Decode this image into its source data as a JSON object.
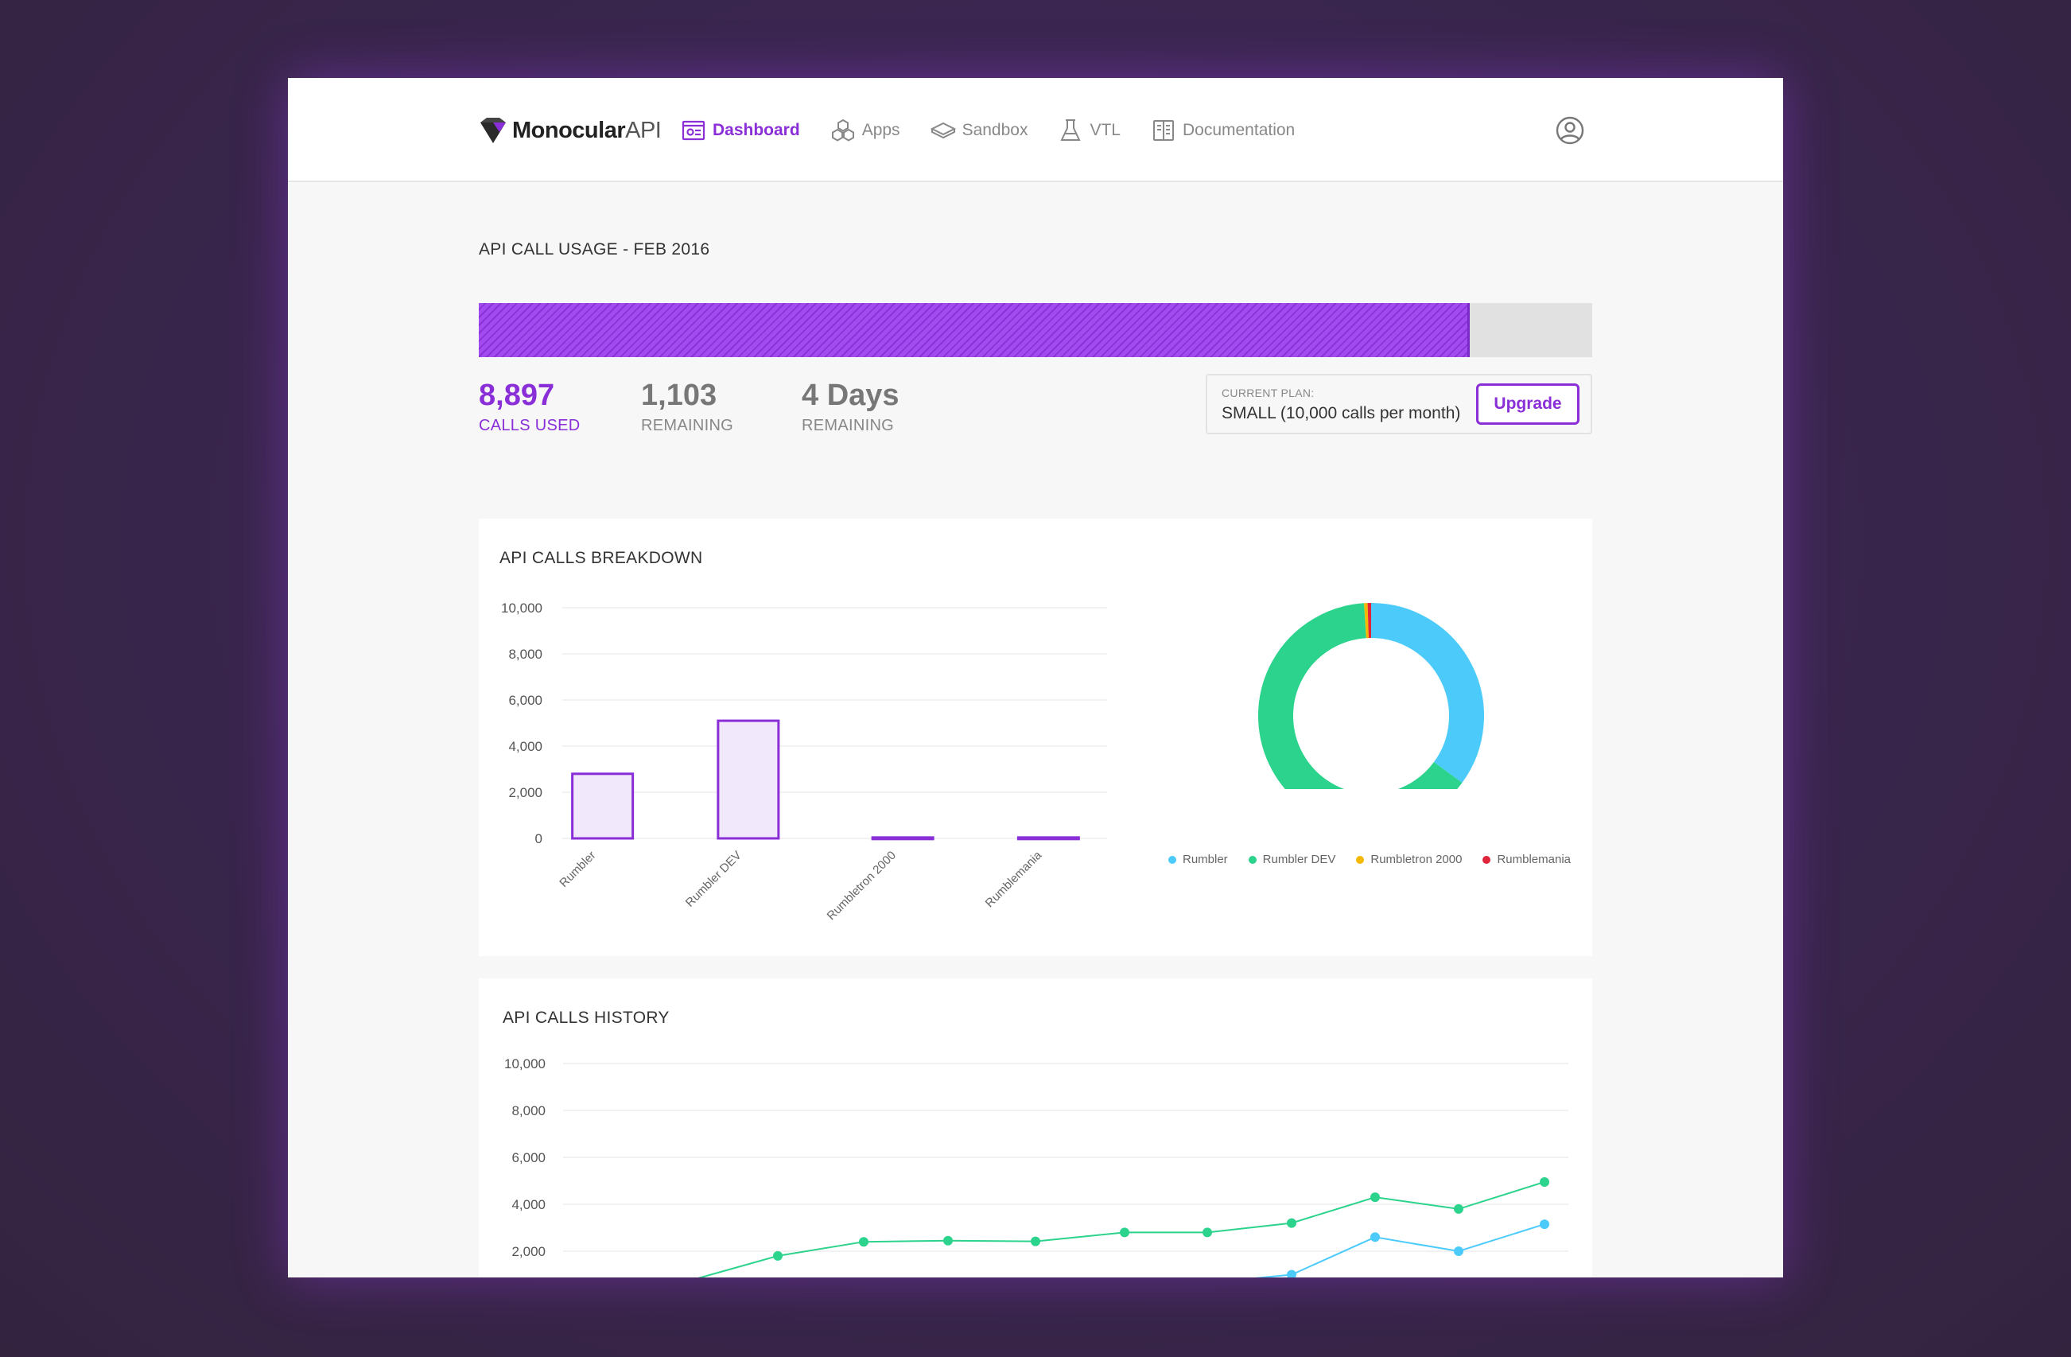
{
  "logo": {
    "bold": "Monocular",
    "light": "API"
  },
  "nav": {
    "items": [
      {
        "label": "Dashboard",
        "icon": "dashboard-icon",
        "active": true
      },
      {
        "label": "Apps",
        "icon": "apps-cubes-icon",
        "active": false
      },
      {
        "label": "Sandbox",
        "icon": "sandbox-layers-icon",
        "active": false
      },
      {
        "label": "VTL",
        "icon": "flask-icon",
        "active": false
      },
      {
        "label": "Documentation",
        "icon": "documentation-icon",
        "active": false
      }
    ],
    "profile_icon": "user-circle-icon"
  },
  "usage": {
    "title": "API CALL USAGE - FEB 2016",
    "progress_fraction": 0.8897,
    "stats": [
      {
        "value": "8,897",
        "label": "CALLS USED"
      },
      {
        "value": "1,103",
        "label": "REMAINING"
      },
      {
        "value": "4 Days",
        "label": "REMAINING"
      }
    ],
    "plan": {
      "caption": "CURRENT PLAN:",
      "value": "SMALL (10,000 calls per month)",
      "upgrade_label": "Upgrade"
    }
  },
  "colors": {
    "accent": "#8a2fd8",
    "rumbler": "#4ccbfa",
    "rumbler_dev": "#2cd38c",
    "rumbletron": "#f5b800",
    "rumblemania": "#e0243a"
  },
  "breakdown": {
    "title": "API CALLS BREAKDOWN",
    "chart_data": {
      "type": "bar",
      "categories": [
        "Rumbler",
        "Rumbler DEV",
        "Rumbletron 2000",
        "Rumblemania"
      ],
      "values": [
        2800,
        5100,
        40,
        40
      ],
      "ylim": [
        0,
        10000
      ],
      "yticks": [
        "0",
        "2,000",
        "4,000",
        "6,000",
        "8,000",
        "10,000"
      ],
      "grid": true
    },
    "donut": {
      "type": "pie",
      "labels": [
        "Rumbler",
        "Rumbler DEV",
        "Rumbletron 2000",
        "Rumblemania"
      ],
      "values": [
        2800,
        5100,
        40,
        40
      ],
      "legend": "bottom"
    }
  },
  "history": {
    "title": "API CALLS HISTORY",
    "chart_data": {
      "type": "line",
      "ylim": [
        0,
        10000
      ],
      "yticks": [
        "2,000",
        "4,000",
        "6,000",
        "8,000",
        "10,000"
      ],
      "grid": true,
      "series": [
        {
          "values": [
            null,
            null,
            1800,
            2400,
            2450,
            2420,
            2800,
            2800,
            3200,
            4300,
            3800,
            4950
          ]
        },
        {
          "values": [
            null,
            null,
            null,
            null,
            null,
            null,
            null,
            null,
            1000,
            2600,
            2000,
            3150
          ]
        }
      ]
    }
  }
}
